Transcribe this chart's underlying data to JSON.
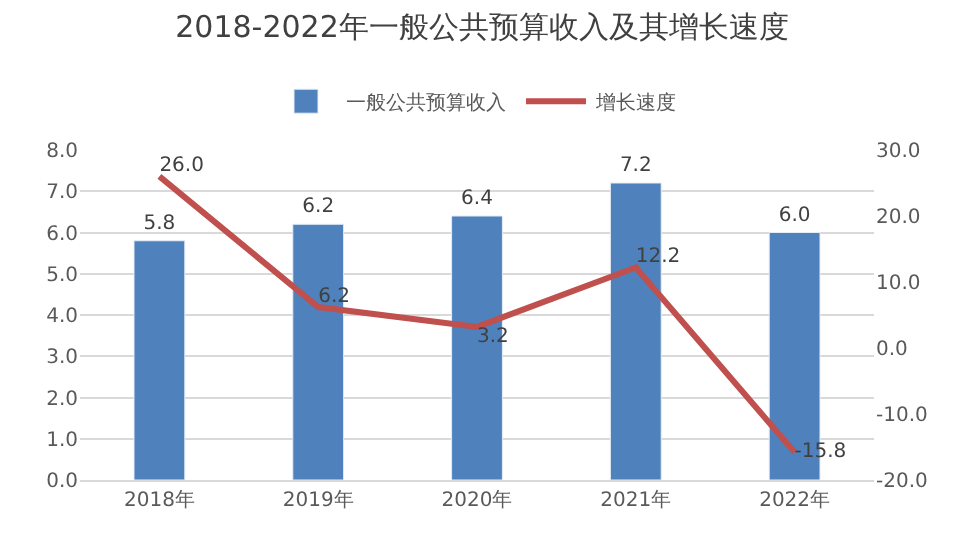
{
  "chart_data": {
    "type": "bar",
    "title": "2018-2022年一般公共预算收入及其增长速度",
    "categories": [
      "2018年",
      "2019年",
      "2020年",
      "2021年",
      "2022年"
    ],
    "series": [
      {
        "name": "一般公共预算收入",
        "color": "#4f81bd",
        "values": [
          5.8,
          6.2,
          6.4,
          7.2,
          6.0
        ],
        "value_labels": [
          "5.8",
          "6.2",
          "6.4",
          "7.2",
          "6.0"
        ]
      },
      {
        "name": "增长速度",
        "color": "#c0504d",
        "type": "line",
        "axis": "y2",
        "marker": "none",
        "values": [
          26.0,
          6.2,
          3.2,
          12.2,
          -15.8
        ],
        "value_labels": [
          "26.0",
          "6.2",
          "3.2",
          "12.2",
          "-15.8"
        ]
      }
    ],
    "ylim": [
      0,
      8
    ],
    "yticks": [
      {
        "value": 0,
        "label": "0.0"
      },
      {
        "value": 1,
        "label": "1.0"
      },
      {
        "value": 2,
        "label": "2.0"
      },
      {
        "value": 3,
        "label": "3.0"
      },
      {
        "value": 4,
        "label": "4.0"
      },
      {
        "value": 5,
        "label": "5.0"
      },
      {
        "value": 6,
        "label": "6.0"
      },
      {
        "value": 7,
        "label": "7.0"
      },
      {
        "value": 8,
        "label": "8.0"
      }
    ],
    "y2lim": [
      -20,
      30
    ],
    "y2ticks": [
      {
        "value": -20,
        "label": "-20.0"
      },
      {
        "value": -10,
        "label": "-10.0"
      },
      {
        "value": 0,
        "label": "0.0"
      },
      {
        "value": 10,
        "label": "10.0"
      },
      {
        "value": 20,
        "label": "20.0"
      },
      {
        "value": 30,
        "label": "30.0"
      }
    ],
    "grid": "y",
    "legend": "top"
  }
}
